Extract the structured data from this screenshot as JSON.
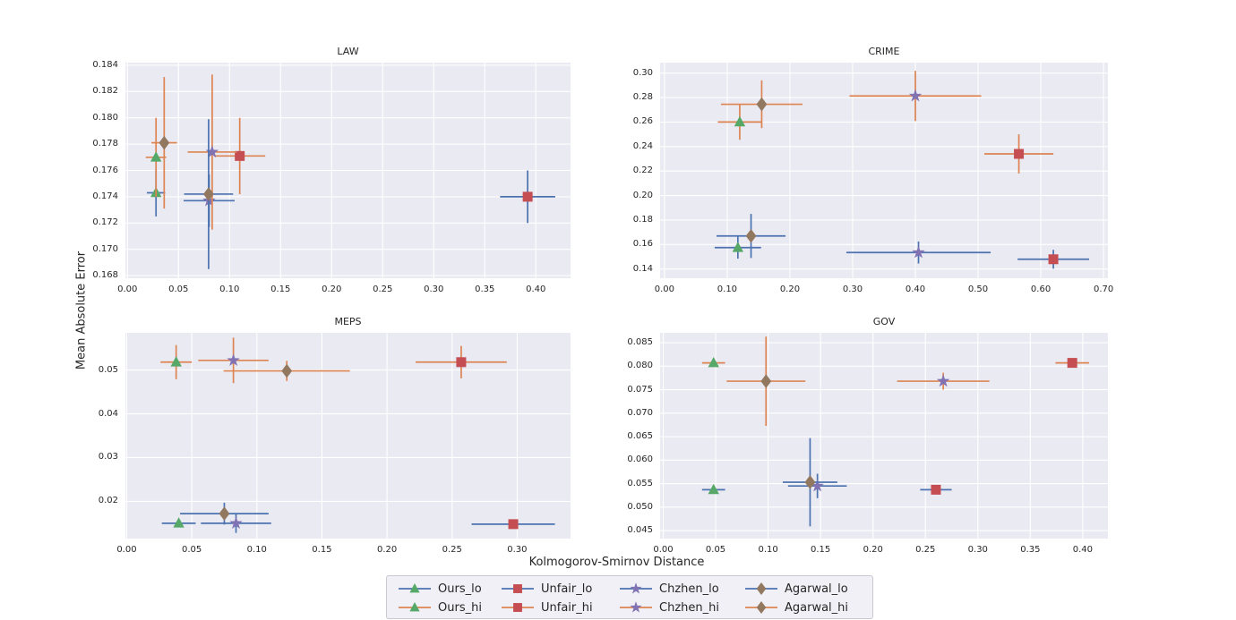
{
  "figure": {
    "xlabel": "Kolmogorov-Smirnov Distance",
    "ylabel": "Mean Absolute Error",
    "background": "#ffffff",
    "axes_background": "#eaeaf2",
    "grid_color": "#ffffff",
    "text_color": "#262626",
    "lo_line_color": "#4c72b0",
    "hi_line_color": "#dd8452"
  },
  "series_styles": [
    {
      "name": "Ours_lo",
      "marker": "triangle",
      "marker_color": "#55a868",
      "line_color": "#4c72b0"
    },
    {
      "name": "Ours_hi",
      "marker": "triangle",
      "marker_color": "#55a868",
      "line_color": "#dd8452"
    },
    {
      "name": "Unfair_lo",
      "marker": "square",
      "marker_color": "#c44e52",
      "line_color": "#4c72b0"
    },
    {
      "name": "Unfair_hi",
      "marker": "square",
      "marker_color": "#c44e52",
      "line_color": "#dd8452"
    },
    {
      "name": "Chzhen_lo",
      "marker": "star",
      "marker_color": "#8172b3",
      "line_color": "#4c72b0"
    },
    {
      "name": "Chzhen_hi",
      "marker": "star",
      "marker_color": "#8172b3",
      "line_color": "#dd8452"
    },
    {
      "name": "Agarwal_lo",
      "marker": "diamond",
      "marker_color": "#937860",
      "line_color": "#4c72b0"
    },
    {
      "name": "Agarwal_hi",
      "marker": "diamond",
      "marker_color": "#937860",
      "line_color": "#dd8452"
    }
  ],
  "legend": {
    "rows": [
      [
        "Ours_lo",
        "Unfair_lo",
        "Chzhen_lo",
        "Agarwal_lo"
      ],
      [
        "Ours_hi",
        "Unfair_hi",
        "Chzhen_hi",
        "Agarwal_hi"
      ]
    ]
  },
  "chart_data": [
    {
      "type": "scatter",
      "title": "LAW",
      "xlim": [
        -0.002,
        0.434
      ],
      "ylim": [
        0.1678,
        0.1842
      ],
      "xticks": [
        0.0,
        0.05,
        0.1,
        0.15,
        0.2,
        0.25,
        0.3,
        0.35,
        0.4
      ],
      "yticks": [
        0.168,
        0.17,
        0.172,
        0.174,
        0.176,
        0.178,
        0.18,
        0.182,
        0.184
      ],
      "xtick_decimals": 2,
      "ytick_decimals": 3,
      "points": [
        {
          "series": "Ours_lo",
          "x": 0.028,
          "y": 0.1743,
          "xerr": 0.009,
          "yerr": 0.0018
        },
        {
          "series": "Ours_hi",
          "x": 0.028,
          "y": 0.177,
          "xerr": 0.01,
          "yerr": 0.003
        },
        {
          "series": "Unfair_lo",
          "x": 0.392,
          "y": 0.174,
          "xerr": 0.027,
          "yerr": 0.002
        },
        {
          "series": "Unfair_hi",
          "x": 0.11,
          "y": 0.1771,
          "xerr": 0.025,
          "yerr": 0.0029
        },
        {
          "series": "Chzhen_lo",
          "x": 0.08,
          "y": 0.1737,
          "xerr": 0.025,
          "yerr": 0.002
        },
        {
          "series": "Chzhen_hi",
          "x": 0.083,
          "y": 0.1774,
          "xerr": 0.024,
          "yerr": 0.0059
        },
        {
          "series": "Agarwal_lo",
          "x": 0.0795,
          "y": 0.1742,
          "xerr": 0.024,
          "yerr": 0.0057
        },
        {
          "series": "Agarwal_hi",
          "x": 0.036,
          "y": 0.1781,
          "xerr": 0.0125,
          "yerr": 0.005
        }
      ]
    },
    {
      "type": "scatter",
      "title": "CRIME",
      "xlim": [
        -0.007,
        0.707
      ],
      "ylim": [
        0.1325,
        0.3085
      ],
      "xticks": [
        0.0,
        0.1,
        0.2,
        0.3,
        0.4,
        0.5,
        0.6,
        0.7
      ],
      "yticks": [
        0.14,
        0.16,
        0.18,
        0.2,
        0.22,
        0.24,
        0.26,
        0.28,
        0.3
      ],
      "xtick_decimals": 2,
      "ytick_decimals": 2,
      "points": [
        {
          "series": "Ours_lo",
          "x": 0.117,
          "y": 0.1575,
          "xerr": 0.037,
          "yerr": 0.009
        },
        {
          "series": "Ours_hi",
          "x": 0.12,
          "y": 0.26,
          "xerr": 0.035,
          "yerr": 0.0145
        },
        {
          "series": "Unfair_lo",
          "x": 0.62,
          "y": 0.148,
          "xerr": 0.057,
          "yerr": 0.0077
        },
        {
          "series": "Unfair_hi",
          "x": 0.565,
          "y": 0.234,
          "xerr": 0.055,
          "yerr": 0.016
        },
        {
          "series": "Chzhen_lo",
          "x": 0.405,
          "y": 0.1535,
          "xerr": 0.115,
          "yerr": 0.009
        },
        {
          "series": "Chzhen_hi",
          "x": 0.4,
          "y": 0.2813,
          "xerr": 0.105,
          "yerr": 0.0205
        },
        {
          "series": "Agarwal_lo",
          "x": 0.138,
          "y": 0.167,
          "xerr": 0.055,
          "yerr": 0.018
        },
        {
          "series": "Agarwal_hi",
          "x": 0.155,
          "y": 0.2745,
          "xerr": 0.065,
          "yerr": 0.0195
        }
      ]
    },
    {
      "type": "scatter",
      "title": "MEPS",
      "xlim": [
        -0.001,
        0.341
      ],
      "ylim": [
        0.0115,
        0.0585
      ],
      "xticks": [
        0.0,
        0.05,
        0.1,
        0.15,
        0.2,
        0.25,
        0.3
      ],
      "yticks": [
        0.02,
        0.03,
        0.04,
        0.05
      ],
      "xtick_decimals": 2,
      "ytick_decimals": 2,
      "points": [
        {
          "series": "Ours_lo",
          "x": 0.04,
          "y": 0.015,
          "xerr": 0.013,
          "yerr": 0.0008
        },
        {
          "series": "Ours_hi",
          "x": 0.038,
          "y": 0.0518,
          "xerr": 0.012,
          "yerr": 0.0039
        },
        {
          "series": "Unfair_lo",
          "x": 0.297,
          "y": 0.0148,
          "xerr": 0.032,
          "yerr": 0.0008
        },
        {
          "series": "Unfair_hi",
          "x": 0.257,
          "y": 0.0518,
          "xerr": 0.035,
          "yerr": 0.0037
        },
        {
          "series": "Chzhen_lo",
          "x": 0.084,
          "y": 0.015,
          "xerr": 0.027,
          "yerr": 0.0022
        },
        {
          "series": "Chzhen_hi",
          "x": 0.082,
          "y": 0.0522,
          "xerr": 0.027,
          "yerr": 0.0052
        },
        {
          "series": "Agarwal_lo",
          "x": 0.075,
          "y": 0.0172,
          "xerr": 0.034,
          "yerr": 0.0025
        },
        {
          "series": "Agarwal_hi",
          "x": 0.123,
          "y": 0.0498,
          "xerr": 0.0485,
          "yerr": 0.0023
        }
      ]
    },
    {
      "type": "scatter",
      "title": "GOV",
      "xlim": [
        -0.003,
        0.424
      ],
      "ylim": [
        0.0433,
        0.0871
      ],
      "xticks": [
        0.0,
        0.05,
        0.1,
        0.15,
        0.2,
        0.25,
        0.3,
        0.35,
        0.4
      ],
      "yticks": [
        0.045,
        0.05,
        0.055,
        0.06,
        0.065,
        0.07,
        0.075,
        0.08,
        0.085
      ],
      "xtick_decimals": 2,
      "ytick_decimals": 3,
      "points": [
        {
          "series": "Ours_lo",
          "x": 0.048,
          "y": 0.0537,
          "xerr": 0.011,
          "yerr": 0.0006
        },
        {
          "series": "Ours_hi",
          "x": 0.048,
          "y": 0.0807,
          "xerr": 0.011,
          "yerr": 0.0006
        },
        {
          "series": "Unfair_lo",
          "x": 0.26,
          "y": 0.0537,
          "xerr": 0.015,
          "yerr": 0.0006
        },
        {
          "series": "Unfair_hi",
          "x": 0.39,
          "y": 0.0807,
          "xerr": 0.016,
          "yerr": 0.0006
        },
        {
          "series": "Chzhen_lo",
          "x": 0.147,
          "y": 0.0545,
          "xerr": 0.028,
          "yerr": 0.0026
        },
        {
          "series": "Chzhen_hi",
          "x": 0.267,
          "y": 0.0768,
          "xerr": 0.044,
          "yerr": 0.0018
        },
        {
          "series": "Agarwal_lo",
          "x": 0.14,
          "y": 0.0553,
          "xerr": 0.026,
          "yerr": 0.0094
        },
        {
          "series": "Agarwal_hi",
          "x": 0.098,
          "y": 0.0768,
          "xerr": 0.0375,
          "yerr": 0.0095
        }
      ]
    }
  ]
}
